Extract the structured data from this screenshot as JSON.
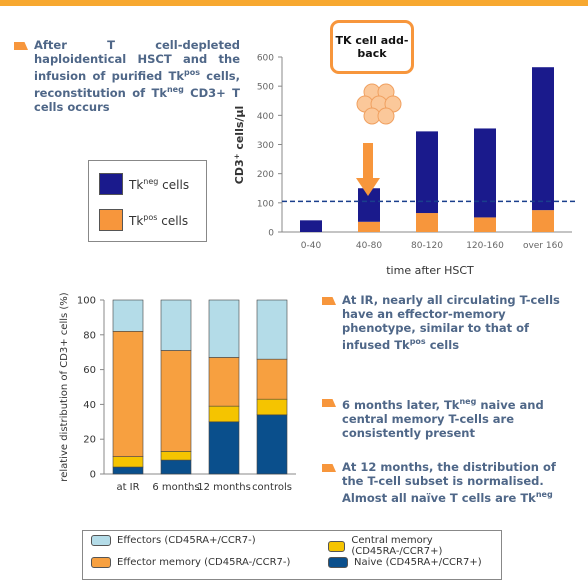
{
  "intro_bullet": [
    "After T cell-depleted haploidentical HSCT and the infusion of purified Tk",
    "pos",
    " cells, reconstitution of Tk",
    "neg",
    " CD3+ T cells occurs"
  ],
  "right_bullets": [
    [
      "At IR, nearly all circulating T-cells have an effector-memory phenotype, similar to that of infused Tk",
      "pos",
      " cells"
    ],
    [
      "6 months later, Tk",
      "neg",
      " naive and central memory T-cells are consistently present"
    ],
    [
      "At 12 months, the distribution of the T-cell subset is normalised. Almost all naïve T cells are Tk",
      "neg",
      ""
    ]
  ],
  "chart_data": [
    {
      "type": "stacked-bar",
      "ylabel": [
        "CD3",
        "+",
        " cells/µl"
      ],
      "xlabel": "time after HSCT",
      "annotation": "TK cell add-back",
      "categories": [
        "0-40",
        "40-80",
        "80-120",
        "120-160",
        "over 160"
      ],
      "series": [
        {
          "name": [
            "Tk",
            "pos",
            " cells"
          ],
          "color": "#f7963c",
          "values": [
            0,
            35,
            65,
            50,
            75
          ]
        },
        {
          "name": [
            "Tk",
            "neg",
            " cells"
          ],
          "color": "#1a1a8c",
          "values": [
            40,
            115,
            280,
            305,
            490
          ]
        }
      ],
      "threshold": 105,
      "ylim": [
        0,
        600
      ],
      "yticks": [
        0,
        100,
        200,
        300,
        400,
        500,
        600
      ]
    },
    {
      "type": "stacked-bar",
      "ylabel": "relative distribution of CD3+ cells (%)",
      "categories": [
        "at IR",
        "6 months",
        "12 months",
        "controls"
      ],
      "series": [
        {
          "name": "Naive (CD45RA+/CCR7+)",
          "color": "#0a4f8c",
          "values": [
            4,
            8,
            30,
            34
          ]
        },
        {
          "name": "Central memory (CD45RA-/CCR7+)",
          "color": "#f5c400",
          "values": [
            6,
            5,
            9,
            9
          ]
        },
        {
          "name": "Effector memory (CD45RA-/CCR7-)",
          "color": "#f7a040",
          "values": [
            72,
            58,
            28,
            23
          ]
        },
        {
          "name": "Effectors (CD45RA+/CCR7-)",
          "color": "#b4dce8",
          "values": [
            18,
            29,
            33,
            34
          ]
        }
      ],
      "ylim": [
        0,
        100
      ],
      "yticks": [
        0,
        20,
        40,
        60,
        80,
        100
      ]
    }
  ]
}
